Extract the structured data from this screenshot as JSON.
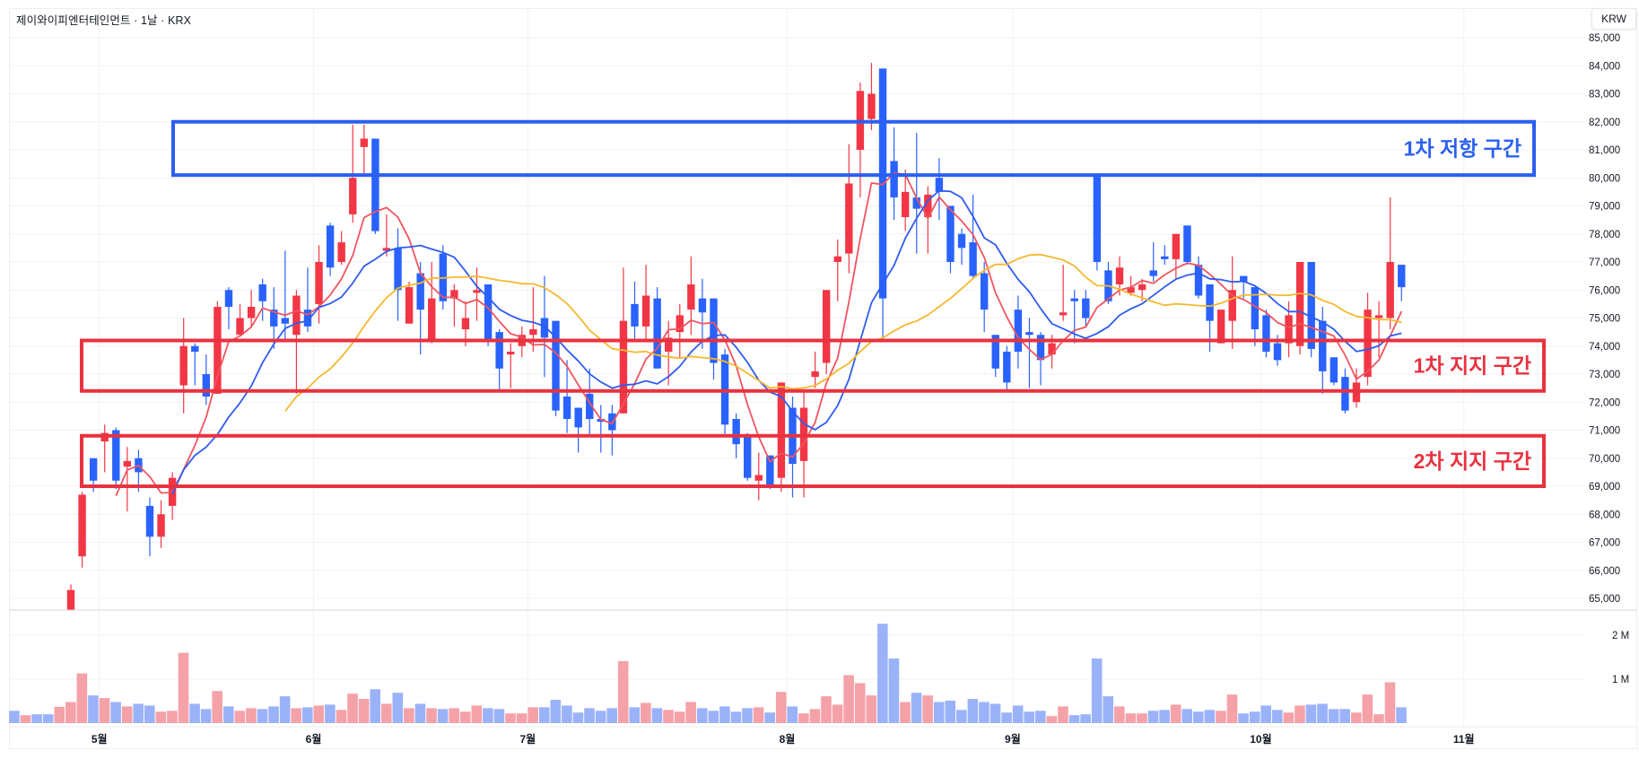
{
  "header": {
    "title": "제이와이피엔터테인먼트 · 1날 · KRX",
    "currency_button": "KRW"
  },
  "colors": {
    "up": "#f23645",
    "down": "#2962ff",
    "volume_up": "#f5a1a8",
    "volume_down": "#9ab2f8",
    "ma_short": "#f0545f",
    "ma_mid": "#2f5cf0",
    "ma_long": "#f5b82e",
    "grid": "#f1f2f5"
  },
  "chart_data": {
    "type": "candlestick",
    "title": "제이와이피엔터테인먼트 · 1날 · KRX",
    "currency": "KRW",
    "ylim": [
      64580,
      86060
    ],
    "y_ticks": [
      {
        "value": 85000,
        "label": "85,000"
      },
      {
        "value": 84000,
        "label": "84,000"
      },
      {
        "value": 83000,
        "label": "83,000"
      },
      {
        "value": 82000,
        "label": "82,000"
      },
      {
        "value": 81000,
        "label": "81,000"
      },
      {
        "value": 80000,
        "label": "80,000"
      },
      {
        "value": 79000,
        "label": "79,000"
      },
      {
        "value": 78000,
        "label": "78,000"
      },
      {
        "value": 77000,
        "label": "77,000"
      },
      {
        "value": 76000,
        "label": "76,000"
      },
      {
        "value": 75000,
        "label": "75,000"
      },
      {
        "value": 74000,
        "label": "74,000"
      },
      {
        "value": 73000,
        "label": "73,000"
      },
      {
        "value": 72000,
        "label": "72,000"
      },
      {
        "value": 71000,
        "label": "71,000"
      },
      {
        "value": 70000,
        "label": "70,000"
      },
      {
        "value": 69000,
        "label": "69,000"
      },
      {
        "value": 68000,
        "label": "68,000"
      },
      {
        "value": 67000,
        "label": "67,000"
      },
      {
        "value": 66000,
        "label": "66,000"
      },
      {
        "value": 65000,
        "label": "65,000"
      }
    ],
    "x_labels": [
      {
        "label": "5월",
        "candle": 4
      },
      {
        "label": "6월",
        "candle": 23
      },
      {
        "label": "7월",
        "candle": 42
      },
      {
        "label": "8월",
        "candle": 65
      },
      {
        "label": "9월",
        "candle": 85
      },
      {
        "label": "10월",
        "candle": 107
      },
      {
        "label": "11월",
        "candle": 125
      }
    ],
    "ohlc_columns": [
      "open",
      "high",
      "low",
      "close"
    ],
    "candles": [
      [
        64600,
        65500,
        64400,
        65300
      ],
      [
        66500,
        68800,
        66100,
        68700
      ],
      [
        70000,
        70000,
        68800,
        69200
      ],
      [
        70600,
        71200,
        69500,
        70900
      ],
      [
        71000,
        71100,
        68900,
        69200
      ],
      [
        69700,
        70400,
        68100,
        69900
      ],
      [
        70000,
        70300,
        68800,
        69500
      ],
      [
        68300,
        68600,
        66500,
        67200
      ],
      [
        67200,
        68500,
        66800,
        68000
      ],
      [
        68300,
        69500,
        67800,
        69300
      ],
      [
        72600,
        75000,
        71600,
        74000
      ],
      [
        74000,
        74100,
        72600,
        73800
      ],
      [
        73000,
        73700,
        71900,
        72200
      ],
      [
        72300,
        75600,
        72300,
        75400
      ],
      [
        76000,
        76100,
        74600,
        75400
      ],
      [
        74400,
        75500,
        74400,
        75000
      ],
      [
        75000,
        76000,
        74700,
        75400
      ],
      [
        76200,
        76400,
        74900,
        75600
      ],
      [
        75300,
        76100,
        73900,
        74700
      ],
      [
        75000,
        77400,
        74200,
        74800
      ],
      [
        74400,
        76000,
        72300,
        75800
      ],
      [
        75300,
        76800,
        74500,
        74700
      ],
      [
        75500,
        77600,
        74800,
        77000
      ],
      [
        78300,
        78400,
        76500,
        76800
      ],
      [
        77000,
        78100,
        76900,
        77700
      ],
      [
        78700,
        81900,
        78400,
        80000
      ],
      [
        81100,
        81900,
        80100,
        81400
      ],
      [
        81400,
        81400,
        78000,
        78100
      ],
      [
        77400,
        78700,
        77200,
        77500
      ],
      [
        77500,
        78200,
        74900,
        76000
      ],
      [
        74800,
        76300,
        74800,
        76100
      ],
      [
        76600,
        77000,
        73700,
        75300
      ],
      [
        74200,
        77000,
        74100,
        75700
      ],
      [
        77300,
        77600,
        75300,
        75600
      ],
      [
        75700,
        76200,
        74700,
        76000
      ],
      [
        74600,
        75600,
        74000,
        75000
      ],
      [
        75900,
        76800,
        74900,
        76000
      ],
      [
        76200,
        76200,
        74000,
        74200
      ],
      [
        74500,
        74600,
        72400,
        73200
      ],
      [
        73700,
        74100,
        72500,
        73800
      ],
      [
        74000,
        74700,
        73600,
        74400
      ],
      [
        74400,
        76100,
        73800,
        74600
      ],
      [
        75000,
        76500,
        72900,
        74300
      ],
      [
        74900,
        74900,
        71500,
        71700
      ],
      [
        72200,
        73500,
        70900,
        71400
      ],
      [
        71800,
        71800,
        70200,
        71100
      ],
      [
        72300,
        73200,
        70800,
        71400
      ],
      [
        71400,
        71900,
        70200,
        71300
      ],
      [
        71600,
        71900,
        70100,
        71000
      ],
      [
        71600,
        76800,
        71600,
        74900
      ],
      [
        75500,
        76300,
        74200,
        74700
      ],
      [
        74700,
        76900,
        74200,
        75800
      ],
      [
        75700,
        76100,
        73200,
        73200
      ],
      [
        73800,
        74900,
        72600,
        74300
      ],
      [
        74500,
        75500,
        73600,
        75100
      ],
      [
        75300,
        77200,
        74400,
        76200
      ],
      [
        75700,
        76400,
        73900,
        75200
      ],
      [
        75700,
        75700,
        72800,
        73400
      ],
      [
        73700,
        73900,
        70800,
        71200
      ],
      [
        71400,
        71600,
        70000,
        70500
      ],
      [
        70800,
        70900,
        69200,
        69300
      ],
      [
        69200,
        70200,
        68500,
        69400
      ],
      [
        70100,
        70100,
        68900,
        69000
      ],
      [
        69300,
        72700,
        68800,
        72700
      ],
      [
        71800,
        72200,
        68600,
        69800
      ],
      [
        69900,
        72400,
        68600,
        71800
      ],
      [
        72900,
        73800,
        72500,
        73100
      ],
      [
        73400,
        76000,
        73000,
        76000
      ],
      [
        77000,
        77800,
        75600,
        77200
      ],
      [
        77300,
        81200,
        76600,
        79800
      ],
      [
        81000,
        83400,
        79300,
        83100
      ],
      [
        82100,
        84100,
        81700,
        83000
      ],
      [
        83900,
        83900,
        74300,
        75700
      ],
      [
        80600,
        81800,
        78500,
        79300
      ],
      [
        78600,
        80300,
        78100,
        79500
      ],
      [
        79300,
        81600,
        77300,
        78900
      ],
      [
        78600,
        79700,
        77300,
        79400
      ],
      [
        80000,
        80700,
        78500,
        79500
      ],
      [
        79000,
        79000,
        76600,
        77000
      ],
      [
        78000,
        78200,
        76900,
        77500
      ],
      [
        77700,
        79400,
        76400,
        76500
      ],
      [
        76600,
        77000,
        74500,
        75300
      ],
      [
        74400,
        74400,
        72900,
        73200
      ],
      [
        73800,
        74000,
        72400,
        72700
      ],
      [
        75300,
        75800,
        73200,
        73800
      ],
      [
        74500,
        75000,
        72500,
        74400
      ],
      [
        74400,
        74500,
        72600,
        73500
      ],
      [
        73700,
        74400,
        73200,
        74100
      ],
      [
        75100,
        76900,
        74900,
        75200
      ],
      [
        75700,
        76000,
        74100,
        75600
      ],
      [
        75700,
        76000,
        74700,
        75000
      ],
      [
        80100,
        80100,
        76700,
        77000
      ],
      [
        76700,
        77000,
        75500,
        75600
      ],
      [
        76200,
        77200,
        75800,
        76800
      ],
      [
        75900,
        76500,
        75800,
        76100
      ],
      [
        76000,
        76400,
        75600,
        76200
      ],
      [
        76700,
        77700,
        76300,
        76500
      ],
      [
        77200,
        77600,
        76900,
        77100
      ],
      [
        77100,
        78000,
        76400,
        78000
      ],
      [
        78300,
        78300,
        76900,
        77000
      ],
      [
        76900,
        77200,
        75700,
        75800
      ],
      [
        76200,
        76200,
        73800,
        74900
      ],
      [
        74100,
        75300,
        74100,
        75300
      ],
      [
        74900,
        77200,
        73900,
        76000
      ],
      [
        76500,
        76500,
        75700,
        76300
      ],
      [
        76100,
        76100,
        74000,
        74600
      ],
      [
        75100,
        75300,
        73600,
        73800
      ],
      [
        74100,
        74400,
        73300,
        73500
      ],
      [
        74100,
        75600,
        73600,
        75100
      ],
      [
        74000,
        77000,
        73700,
        77000
      ],
      [
        77000,
        77000,
        73600,
        73900
      ],
      [
        74900,
        75400,
        72300,
        73100
      ],
      [
        73600,
        73600,
        72600,
        72700
      ],
      [
        72900,
        73200,
        71600,
        71700
      ],
      [
        72000,
        73200,
        71800,
        72700
      ],
      [
        72900,
        75900,
        72600,
        75300
      ],
      [
        75000,
        75600,
        73600,
        75100
      ],
      [
        75000,
        79300,
        74600,
        77000
      ],
      [
        76900,
        76900,
        75600,
        76100
      ]
    ],
    "volume_before_first_visible_candle": [
      {
        "value": 0.28,
        "direction": "down"
      },
      {
        "value": 0.18,
        "direction": "up"
      },
      {
        "value": 0.2,
        "direction": "down"
      },
      {
        "value": 0.2,
        "direction": "down"
      },
      {
        "value": 0.37,
        "direction": "up"
      }
    ],
    "volume_unit": "M",
    "volume": [
      0.48,
      1.13,
      0.63,
      0.57,
      0.48,
      0.38,
      0.44,
      0.4,
      0.26,
      0.28,
      1.6,
      0.44,
      0.32,
      0.73,
      0.38,
      0.28,
      0.34,
      0.32,
      0.38,
      0.61,
      0.34,
      0.36,
      0.4,
      0.42,
      0.3,
      0.67,
      0.55,
      0.77,
      0.44,
      0.69,
      0.34,
      0.44,
      0.34,
      0.32,
      0.34,
      0.26,
      0.4,
      0.34,
      0.32,
      0.22,
      0.22,
      0.36,
      0.36,
      0.53,
      0.4,
      0.24,
      0.34,
      0.28,
      0.34,
      1.41,
      0.36,
      0.46,
      0.34,
      0.3,
      0.26,
      0.48,
      0.34,
      0.28,
      0.38,
      0.26,
      0.34,
      0.36,
      0.24,
      0.71,
      0.38,
      0.22,
      0.32,
      0.61,
      0.42,
      1.09,
      0.91,
      0.63,
      2.26,
      1.47,
      0.48,
      0.69,
      0.63,
      0.48,
      0.51,
      0.3,
      0.55,
      0.48,
      0.44,
      0.24,
      0.4,
      0.26,
      0.28,
      0.16,
      0.38,
      0.18,
      0.2,
      1.47,
      0.61,
      0.38,
      0.22,
      0.22,
      0.28,
      0.3,
      0.42,
      0.32,
      0.26,
      0.3,
      0.28,
      0.65,
      0.22,
      0.26,
      0.4,
      0.3,
      0.24,
      0.4,
      0.42,
      0.44,
      0.32,
      0.32,
      0.24,
      0.65,
      0.2,
      0.93,
      0.36
    ],
    "volume_ticks": [
      {
        "value": 2,
        "label": "2 M"
      },
      {
        "value": 1,
        "label": "1 M"
      }
    ],
    "moving_averages": [
      {
        "color_key": "ma_short"
      },
      {
        "color_key": "ma_mid"
      },
      {
        "color_key": "ma_long"
      }
    ],
    "zones": [
      {
        "label": "1차 저항 구간",
        "low": 80100,
        "high": 82000,
        "color": "#2b5ff0"
      },
      {
        "label": "1차 지지 구간",
        "low": 72400,
        "high": 74200,
        "color": "#e8323f"
      },
      {
        "label": "2차 지지 구간",
        "low": 69000,
        "high": 70800,
        "color": "#e8323f"
      }
    ],
    "grid": true,
    "legend": "none"
  }
}
